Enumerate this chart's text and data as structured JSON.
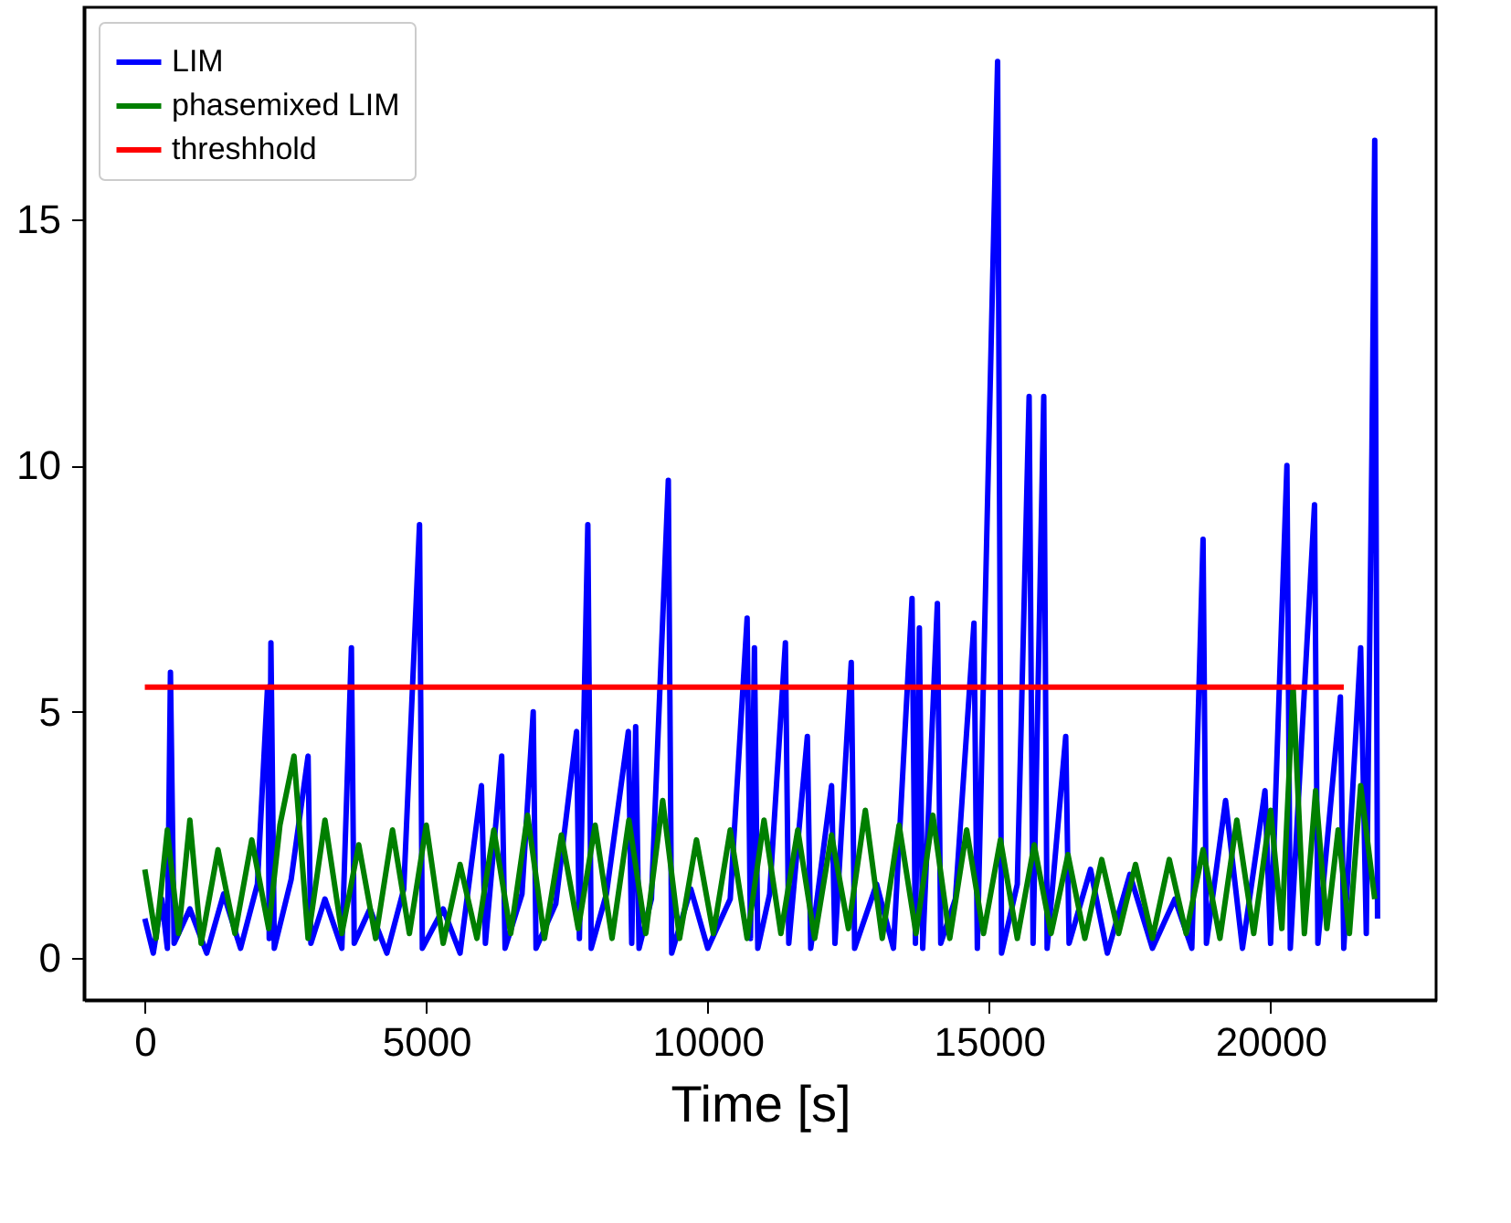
{
  "chart_data": {
    "type": "line",
    "xlabel": "Time [s]",
    "xlim": [
      -1080,
      22940
    ],
    "ylim": [
      -0.85,
      19.3
    ],
    "xticks": [
      0,
      5000,
      10000,
      15000,
      20000
    ],
    "yticks": [
      0,
      5,
      10,
      15
    ],
    "grid": false,
    "legend": "top left",
    "line_style": "solid",
    "marker": "none",
    "series": [
      {
        "name": "LIM",
        "color": "#0000ff",
        "x": [
          0,
          150,
          300,
          400,
          455,
          520,
          800,
          1100,
          1400,
          1700,
          2000,
          2180,
          2210,
          2240,
          2300,
          2600,
          2900,
          2950,
          3200,
          3500,
          3670,
          3720,
          4000,
          4300,
          4600,
          4880,
          4930,
          5300,
          5600,
          5980,
          6050,
          6340,
          6400,
          6700,
          6900,
          6950,
          7300,
          7670,
          7720,
          7870,
          7930,
          8200,
          8590,
          8650,
          8720,
          8780,
          9000,
          9300,
          9360,
          9700,
          10000,
          10400,
          10700,
          10760,
          10830,
          10890,
          11100,
          11380,
          11440,
          11770,
          11830,
          12200,
          12260,
          12550,
          12610,
          13000,
          13300,
          13630,
          13690,
          13760,
          13820,
          14080,
          14140,
          14400,
          14730,
          14790,
          15150,
          15220,
          15500,
          15710,
          15780,
          15970,
          16030,
          16360,
          16420,
          16800,
          17100,
          17500,
          17900,
          18300,
          18600,
          18800,
          18860,
          19200,
          19500,
          19900,
          20000,
          20290,
          20350,
          20780,
          20840,
          21240,
          21300,
          21600,
          21700,
          21800,
          21850,
          21900
        ],
        "values": [
          0.8,
          0.1,
          1.2,
          0.2,
          5.8,
          0.3,
          1.0,
          0.1,
          1.3,
          0.2,
          1.5,
          5.5,
          0.4,
          6.4,
          0.2,
          1.6,
          4.1,
          0.3,
          1.2,
          0.2,
          6.3,
          0.3,
          1.0,
          0.1,
          1.4,
          8.8,
          0.2,
          1.0,
          0.1,
          3.5,
          0.3,
          4.1,
          0.2,
          1.3,
          5.0,
          0.2,
          1.1,
          4.6,
          0.4,
          8.8,
          0.2,
          1.3,
          4.6,
          0.3,
          4.7,
          0.2,
          1.2,
          9.7,
          0.1,
          1.4,
          0.2,
          1.2,
          6.9,
          0.4,
          6.3,
          0.2,
          1.3,
          6.4,
          0.3,
          4.5,
          0.2,
          3.5,
          0.3,
          6.0,
          0.2,
          1.5,
          0.2,
          7.3,
          0.3,
          6.7,
          0.2,
          7.2,
          0.3,
          1.2,
          6.8,
          0.2,
          18.2,
          0.1,
          1.5,
          11.4,
          0.3,
          11.4,
          0.2,
          4.5,
          0.3,
          1.8,
          0.1,
          1.7,
          0.2,
          1.2,
          0.2,
          8.5,
          0.3,
          3.2,
          0.2,
          3.4,
          0.3,
          10.0,
          0.2,
          9.2,
          0.3,
          5.3,
          0.2,
          6.3,
          0.5,
          10.3,
          16.6,
          0.8
        ]
      },
      {
        "name": "phasemixed LIM",
        "color": "#007f00",
        "x": [
          0,
          200,
          400,
          600,
          800,
          1000,
          1300,
          1600,
          1900,
          2200,
          2400,
          2650,
          2900,
          3200,
          3500,
          3800,
          4100,
          4400,
          4700,
          5000,
          5300,
          5600,
          5900,
          6200,
          6500,
          6800,
          7100,
          7400,
          7700,
          8000,
          8300,
          8600,
          8900,
          9200,
          9500,
          9800,
          10100,
          10400,
          10700,
          11000,
          11300,
          11600,
          11900,
          12200,
          12500,
          12800,
          13100,
          13400,
          13700,
          14000,
          14300,
          14600,
          14900,
          15200,
          15500,
          15800,
          16100,
          16400,
          16700,
          17000,
          17300,
          17600,
          17900,
          18200,
          18500,
          18800,
          19100,
          19400,
          19700,
          20000,
          20200,
          20400,
          20600,
          20800,
          21000,
          21200,
          21400,
          21600,
          21850
        ],
        "values": [
          1.8,
          0.4,
          2.6,
          0.5,
          2.8,
          0.3,
          2.2,
          0.5,
          2.4,
          0.6,
          2.7,
          4.1,
          0.4,
          2.8,
          0.5,
          2.3,
          0.4,
          2.6,
          0.5,
          2.7,
          0.3,
          1.9,
          0.4,
          2.6,
          0.5,
          2.9,
          0.4,
          2.5,
          0.6,
          2.7,
          0.4,
          2.8,
          0.5,
          3.2,
          0.4,
          2.4,
          0.5,
          2.6,
          0.4,
          2.8,
          0.5,
          2.6,
          0.4,
          2.5,
          0.6,
          3.0,
          0.4,
          2.7,
          0.5,
          2.9,
          0.4,
          2.6,
          0.5,
          2.4,
          0.4,
          2.3,
          0.5,
          2.1,
          0.4,
          2.0,
          0.5,
          1.9,
          0.4,
          2.0,
          0.5,
          2.2,
          0.4,
          2.8,
          0.5,
          3.0,
          0.6,
          5.5,
          0.5,
          3.4,
          0.6,
          2.6,
          0.5,
          3.5,
          1.2
        ]
      },
      {
        "name": "threshhold",
        "color": "#ff0000",
        "x": [
          0,
          21300
        ],
        "values": [
          5.5,
          5.5
        ]
      }
    ]
  }
}
